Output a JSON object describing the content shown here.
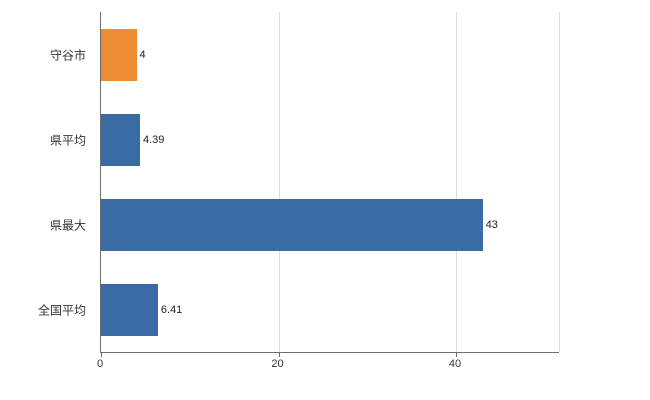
{
  "chart_data": {
    "type": "bar",
    "orientation": "horizontal",
    "title": "",
    "xlabel": "",
    "ylabel": "",
    "categories": [
      "守谷市",
      "県平均",
      "県最大",
      "全国平均"
    ],
    "values": [
      4,
      4.39,
      43,
      6.41
    ],
    "value_labels": [
      "4",
      "4.39",
      "43",
      "6.41"
    ],
    "bar_colors": [
      "#ec8c33",
      "#3a6ba5",
      "#3a6ba5",
      "#3a6ba5"
    ],
    "xlim": [
      0,
      51.6
    ],
    "x_ticks": [
      0,
      20,
      40
    ],
    "grid": true,
    "legend": false,
    "colors": {
      "axis": "#6e6e6e",
      "gridline": "#dcdcdc",
      "text": "#333333"
    }
  }
}
